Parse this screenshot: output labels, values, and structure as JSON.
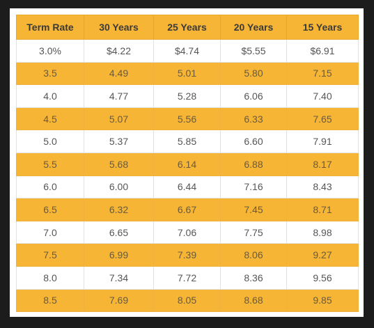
{
  "table": {
    "headers": [
      "Term Rate",
      "30 Years",
      "25 Years",
      "20 Years",
      "15 Years"
    ],
    "rows": [
      [
        "3.0%",
        "$4.22",
        "$4.74",
        "$5.55",
        "$6.91"
      ],
      [
        "3.5",
        "4.49",
        "5.01",
        "5.80",
        "7.15"
      ],
      [
        "4.0",
        "4.77",
        "5.28",
        "6.06",
        "7.40"
      ],
      [
        "4.5",
        "5.07",
        "5.56",
        "6.33",
        "7.65"
      ],
      [
        "5.0",
        "5.37",
        "5.85",
        "6.60",
        "7.91"
      ],
      [
        "5.5",
        "5.68",
        "6.14",
        "6.88",
        "8.17"
      ],
      [
        "6.0",
        "6.00",
        "6.44",
        "7.16",
        "8.43"
      ],
      [
        "6.5",
        "6.32",
        "6.67",
        "7.45",
        "8.71"
      ],
      [
        "7.0",
        "6.65",
        "7.06",
        "7.75",
        "8.98"
      ],
      [
        "7.5",
        "6.99",
        "7.39",
        "8.06",
        "9.27"
      ],
      [
        "8.0",
        "7.34",
        "7.72",
        "8.36",
        "9.56"
      ],
      [
        "8.5",
        "7.69",
        "8.05",
        "8.68",
        "9.85"
      ]
    ]
  },
  "colors": {
    "header_background": "#f7b536",
    "stripe_background": "#f7b536",
    "row_background": "#ffffff",
    "outer_background": "#1c1c1c"
  }
}
